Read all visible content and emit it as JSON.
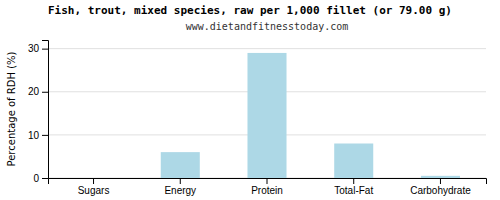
{
  "chart_data": {
    "type": "bar",
    "title": "Fish, trout, mixed species, raw per 1,000 fillet (or 79.00 g)",
    "subtitle": "www.dietandfitnesstoday.com",
    "categories": [
      "Sugars",
      "Energy",
      "Protein",
      "Total-Fat",
      "Carbohydrate"
    ],
    "values": [
      0.0,
      6.0,
      29.0,
      8.0,
      0.5
    ],
    "color": "#add8e6",
    "ylabel": "Percentage of RDH (%)",
    "ylim": [
      0,
      32
    ],
    "yticks": [
      0,
      10,
      20,
      30
    ],
    "grid": true
  }
}
